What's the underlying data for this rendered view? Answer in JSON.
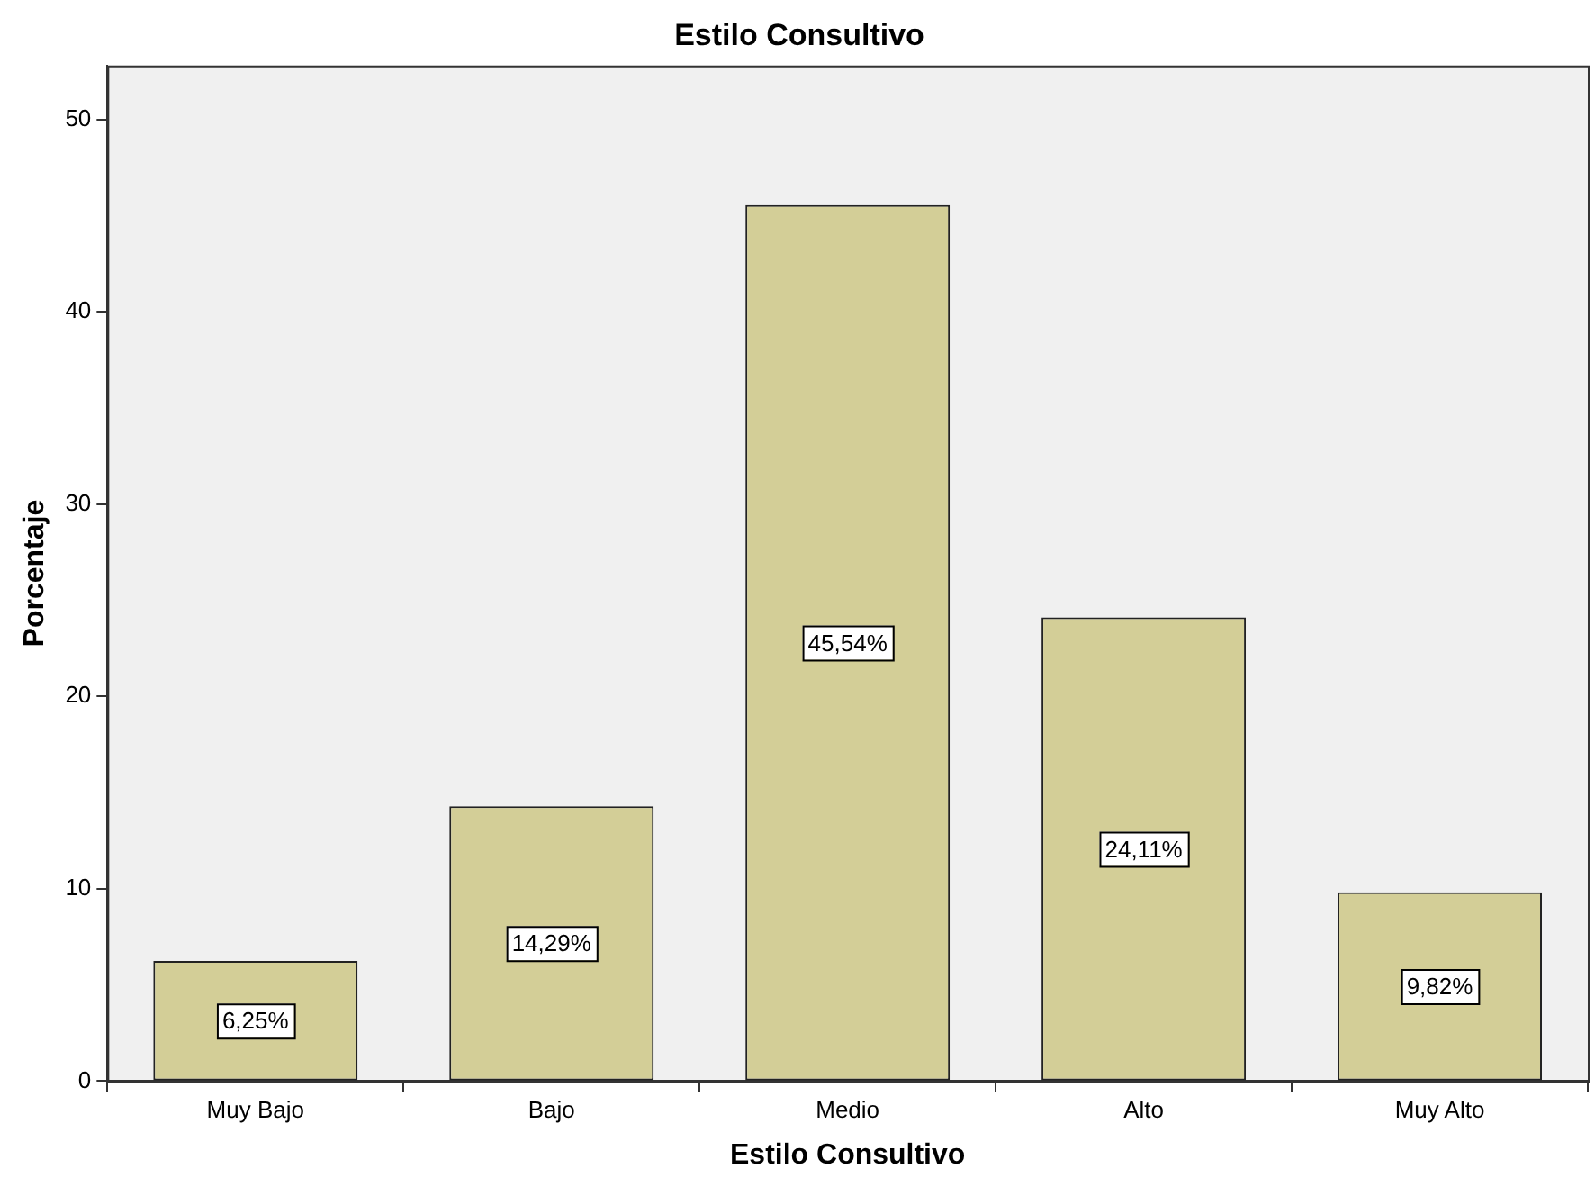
{
  "chart_data": {
    "type": "bar",
    "title": "Estilo Consultivo",
    "xlabel": "Estilo Consultivo",
    "ylabel": "Porcentaje",
    "categories": [
      "Muy Bajo",
      "Bajo",
      "Medio",
      "Alto",
      "Muy Alto"
    ],
    "values": [
      6.25,
      14.29,
      45.54,
      24.11,
      9.82
    ],
    "value_labels": [
      "6,25%",
      "14,29%",
      "45,54%",
      "24,11%",
      "9,82%"
    ],
    "color": "#d3ce97",
    "ylim": [
      0,
      52.8
    ],
    "yticks": [
      0,
      10,
      20,
      30,
      40,
      50
    ],
    "grid": false,
    "legend": false
  }
}
